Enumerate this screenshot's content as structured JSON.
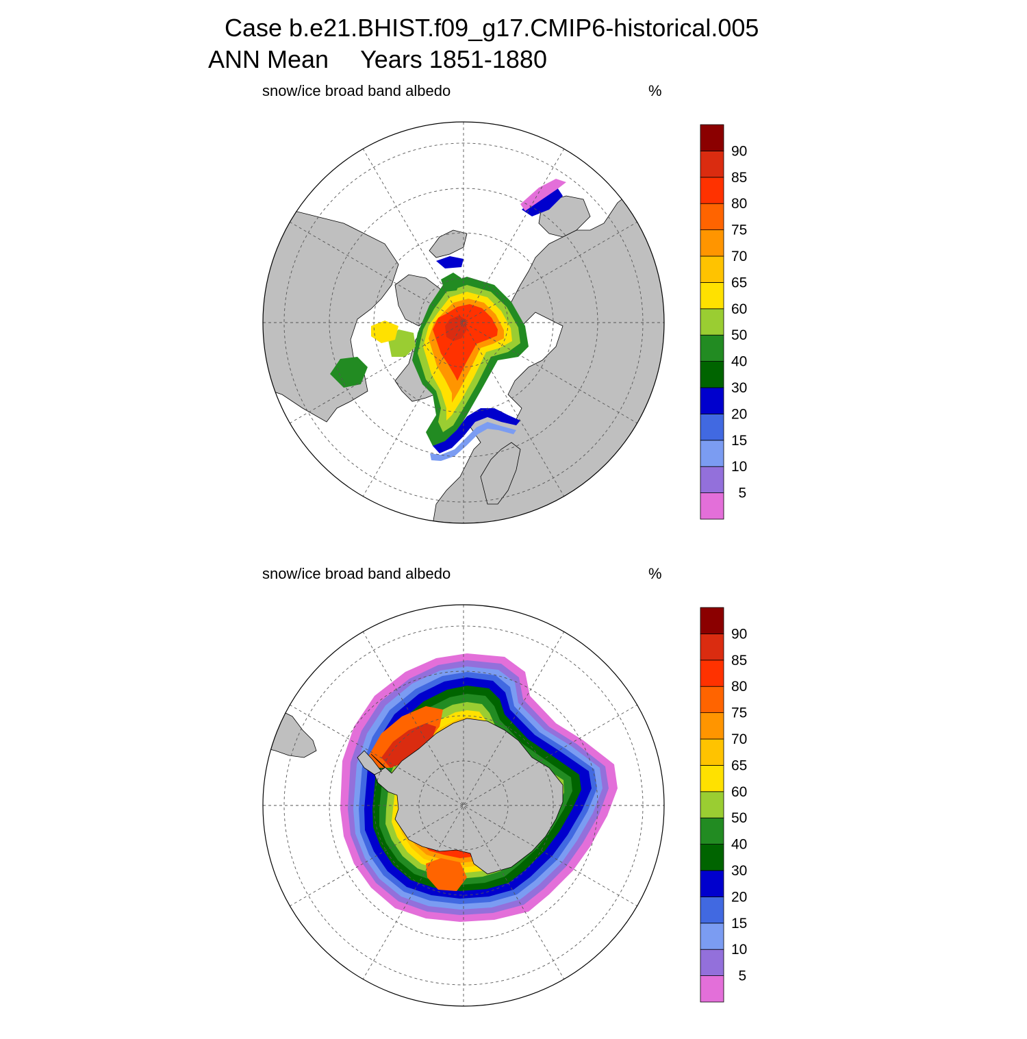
{
  "title": {
    "case_line": "Case b.e21.BHIST.f09_g17.CMIP6-historical.005",
    "season": "ANN Mean",
    "years": "Years 1851-1880"
  },
  "colors": {
    "land": "#bfbfbf",
    "ocean": "#ffffff",
    "levels": [
      "#e36fd9",
      "#9370db",
      "#7b9cf2",
      "#4169e1",
      "#0000cd",
      "#006400",
      "#228b22",
      "#9acd32",
      "#ffe100",
      "#ffc300",
      "#ff9500",
      "#ff6400",
      "#ff3200",
      "#da2c10",
      "#8b0000"
    ]
  },
  "colorbar": {
    "labels": [
      "5",
      "10",
      "15",
      "20",
      "30",
      "40",
      "50",
      "60",
      "65",
      "70",
      "75",
      "80",
      "85",
      "90"
    ]
  },
  "panels": [
    {
      "id": "north",
      "variable": "snow/ice broad band albedo",
      "units": "%"
    },
    {
      "id": "south",
      "variable": "snow/ice broad band albedo",
      "units": "%"
    }
  ]
}
